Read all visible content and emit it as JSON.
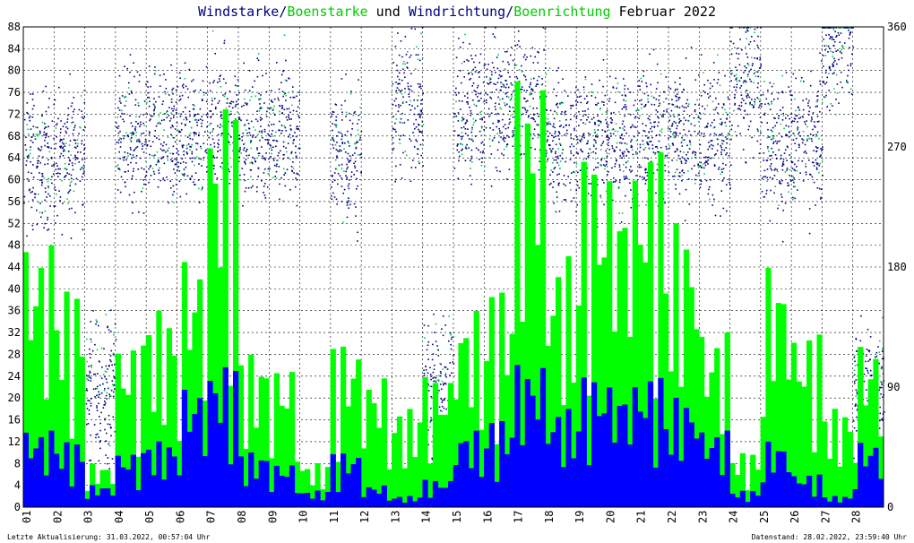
{
  "title": {
    "part1": "Windstarke",
    "sep1": "/",
    "part2": "Boenstarke",
    "part3": " und ",
    "part4": "Windrichtung",
    "sep2": "/",
    "part5": "Boenrichtung",
    "part6": " Februar 2022"
  },
  "colors": {
    "wind": "#0000ff",
    "gust": "#00ff00",
    "direction": "#000080",
    "gust_direction": "#00cc44",
    "grid": "#000000",
    "title_dark": "#000080",
    "title_green": "#00cc00"
  },
  "footer": {
    "left": "Letzte Aktualisierung: 31.03.2022, 00:57:04 Uhr",
    "right": "Datenstand: 28.02.2022, 23:59:40 Uhr"
  },
  "chart_data": {
    "type": "area",
    "ylim_left": [
      0,
      88
    ],
    "ylim_right": [
      0,
      360
    ],
    "left_ticks": [
      "0",
      "4",
      "8",
      "12",
      "16",
      "20",
      "24",
      "28",
      "32",
      "36",
      "40",
      "44",
      "48",
      "52",
      "56",
      "60",
      "64",
      "68",
      "72",
      "76",
      "80",
      "84",
      "88"
    ],
    "right_ticks": [
      "0",
      "90",
      "180",
      "270",
      "360"
    ],
    "categories": [
      "01",
      "02",
      "03",
      "04",
      "05",
      "06",
      "07",
      "08",
      "09",
      "10",
      "11",
      "12",
      "13",
      "14",
      "15",
      "16",
      "17",
      "18",
      "19",
      "20",
      "21",
      "22",
      "23",
      "24",
      "25",
      "26",
      "27",
      "28"
    ],
    "grid": true,
    "series": [
      {
        "name": "Windstarke",
        "axis": "left",
        "daily_max": [
          14,
          12,
          4,
          10,
          12,
          22,
          26,
          10,
          8,
          3,
          10,
          4,
          2,
          5,
          14,
          16,
          26,
          18,
          24,
          22,
          24,
          20,
          14,
          3,
          12,
          6,
          2,
          12
        ]
      },
      {
        "name": "Boenstarke",
        "axis": "left",
        "daily_max": [
          48,
          40,
          8,
          30,
          36,
          46,
          74,
          28,
          26,
          8,
          30,
          24,
          18,
          24,
          36,
          40,
          78,
          46,
          64,
          60,
          66,
          52,
          32,
          10,
          44,
          32,
          18,
          30
        ]
      },
      {
        "name": "Windrichtung",
        "axis": "right",
        "daily_center": [
          260,
          265,
          90,
          275,
          275,
          280,
          285,
          280,
          280,
          0,
          265,
          0,
          300,
          90,
          300,
          300,
          300,
          275,
          275,
          275,
          280,
          280,
          275,
          320,
          270,
          275,
          350,
          90
        ]
      },
      {
        "name": "Boenrichtung",
        "axis": "right",
        "daily_center": [
          265,
          270,
          100,
          278,
          278,
          282,
          285,
          282,
          282,
          0,
          268,
          0,
          310,
          95,
          300,
          300,
          300,
          278,
          278,
          278,
          282,
          282,
          278,
          330,
          272,
          275,
          355,
          95
        ]
      }
    ]
  }
}
